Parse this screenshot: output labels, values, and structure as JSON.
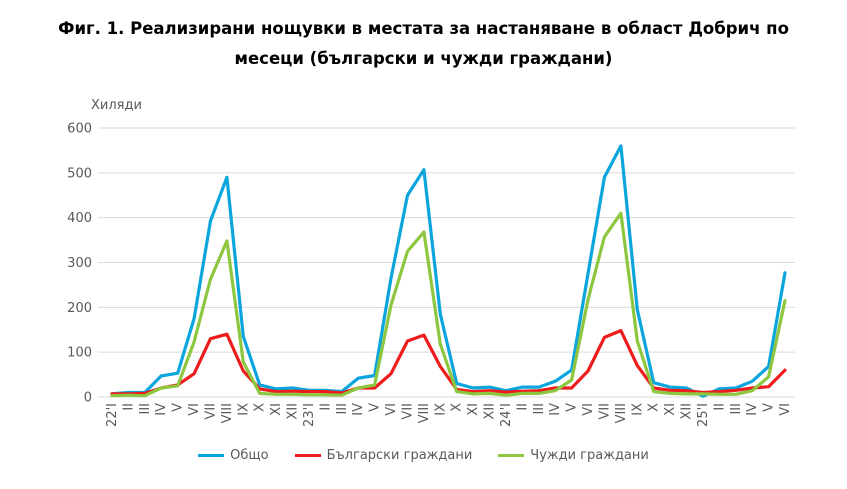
{
  "title": {
    "line1": "Фиг. 1. Реализирани нощувки в местата за настаняване в област Добрич по",
    "line2": "месеци (български и чужди граждани)"
  },
  "chart_data": {
    "type": "line",
    "title": "Фиг. 1. Реализирани нощувки в местата за настаняване в област Добрич по месеци (български и чужди граждани)",
    "ylabel": "Хиляди",
    "ylim": [
      0,
      600
    ],
    "yticks": [
      "0",
      "100",
      "200",
      "300",
      "400",
      "500",
      "600"
    ],
    "grid": true,
    "legend_position": "bottom",
    "categories": [
      "22'I",
      "II",
      "III",
      "IV",
      "V",
      "VI",
      "VII",
      "VIII",
      "IX",
      "X",
      "XI",
      "XII",
      "23'I",
      "II",
      "III",
      "IV",
      "V",
      "VI",
      "VII",
      "VIII",
      "IX",
      "X",
      "XI",
      "XII",
      "24'I",
      "II",
      "III",
      "IV",
      "V",
      "VI",
      "VII",
      "VIII",
      "IX",
      "X",
      "XI",
      "XII",
      "25'I",
      "II",
      "III",
      "IV",
      "V",
      "VI"
    ],
    "series": [
      {
        "name": "Общо",
        "color": "#0aa5dc",
        "values": [
          7,
          10,
          10,
          47,
          53,
          175,
          393,
          490,
          135,
          27,
          18,
          20,
          15,
          15,
          12,
          42,
          48,
          265,
          450,
          507,
          185,
          30,
          20,
          22,
          14,
          22,
          22,
          35,
          60,
          275,
          490,
          560,
          195,
          32,
          22,
          20,
          2,
          18,
          20,
          35,
          68,
          277
        ]
      },
      {
        "name": "Български граждани",
        "color": "#ee1c1c",
        "values": [
          7,
          7,
          8,
          20,
          27,
          52,
          130,
          140,
          58,
          18,
          12,
          13,
          12,
          12,
          9,
          20,
          20,
          52,
          125,
          138,
          68,
          17,
          12,
          14,
          11,
          13,
          14,
          20,
          20,
          58,
          133,
          148,
          70,
          20,
          15,
          14,
          10,
          12,
          15,
          20,
          23,
          60
        ]
      },
      {
        "name": "Чужди граждани",
        "color": "#8dc63f",
        "values": [
          3,
          4,
          3,
          20,
          25,
          123,
          263,
          348,
          78,
          8,
          6,
          6,
          5,
          5,
          4,
          20,
          27,
          205,
          325,
          368,
          118,
          12,
          7,
          8,
          4,
          8,
          8,
          14,
          38,
          217,
          357,
          410,
          125,
          12,
          8,
          7,
          7,
          6,
          6,
          14,
          45,
          215
        ]
      }
    ]
  }
}
